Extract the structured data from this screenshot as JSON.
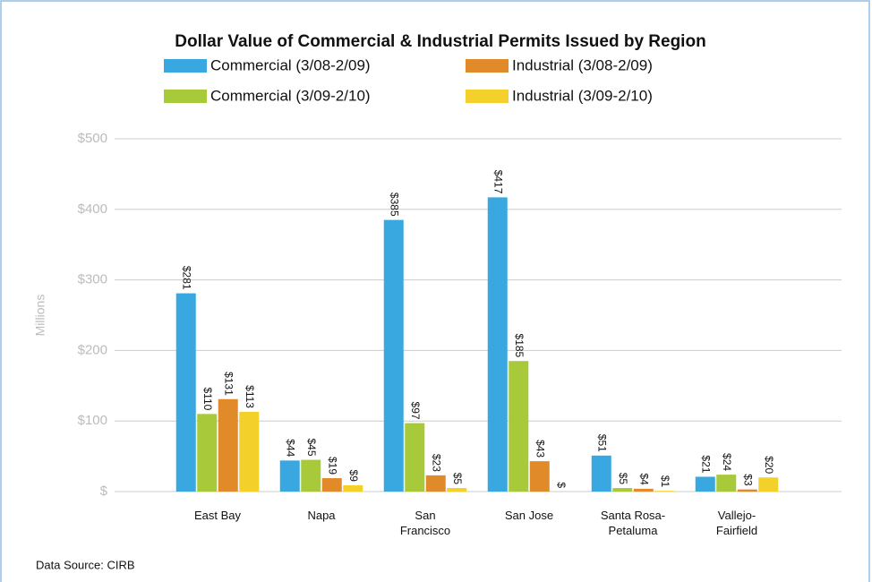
{
  "chart_data": {
    "type": "bar",
    "title": "Dollar Value of Commercial & Industrial Permits Issued by Region",
    "y_label": "Millions",
    "source": "Data Source: CIRB",
    "categories": [
      "East Bay",
      "Napa",
      "San Francisco",
      "San Jose",
      "Santa Rosa-Petaluma",
      "Vallejo-Fairfield"
    ],
    "series": [
      {
        "name": "Commercial (3/08-2/09)",
        "color": "#3aa8e0",
        "values": [
          281,
          44,
          385,
          417,
          51,
          21
        ],
        "value_labels": [
          "$281",
          "$44",
          "$385",
          "$417",
          "$51",
          "$21"
        ]
      },
      {
        "name": "Industrial (3/08-2/09)",
        "color": "#e08a2a",
        "values": [
          131,
          19,
          23,
          43,
          4,
          3
        ],
        "value_labels": [
          "$131",
          "$19",
          "$23",
          "$43",
          "$4",
          "$3"
        ]
      },
      {
        "name": "Commercial (3/09-2/10)",
        "color": "#a8c93a",
        "values": [
          110,
          45,
          97,
          185,
          5,
          24
        ],
        "value_labels": [
          "$110",
          "$45",
          "$97",
          "$185",
          "$5",
          "$24"
        ]
      },
      {
        "name": "Industrial (3/09-2/10)",
        "color": "#f3d02a",
        "values": [
          113,
          9,
          5,
          0,
          1,
          20
        ],
        "value_labels": [
          "$113",
          "$9",
          "$5",
          "$",
          "$1",
          "$20"
        ]
      }
    ],
    "ylim": [
      0,
      500
    ],
    "yticks": [
      {
        "value": 0,
        "label": "$"
      },
      {
        "value": 100,
        "label": "$100"
      },
      {
        "value": 200,
        "label": "$200"
      },
      {
        "value": 300,
        "label": "$300"
      },
      {
        "value": 400,
        "label": "$400"
      },
      {
        "value": 500,
        "label": "$500"
      }
    ],
    "grid": true
  }
}
